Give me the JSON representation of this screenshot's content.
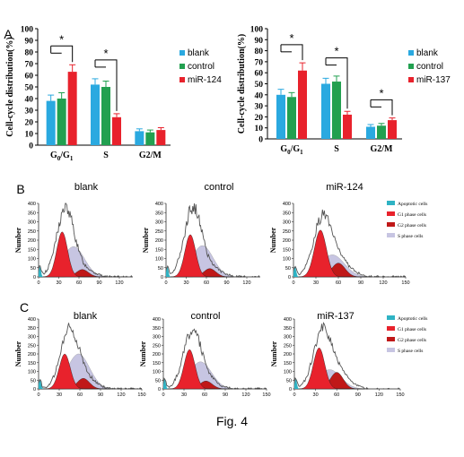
{
  "figure": {
    "caption": "Fig. 4",
    "panel_labels": {
      "A": "A",
      "B": "B",
      "C": "C"
    }
  },
  "colors": {
    "blank": "#2aa9e0",
    "control": "#22a050",
    "mir": "#e8222c",
    "apoptotic": "#2fb3c4",
    "g1": "#e8222c",
    "g2": "#c01818",
    "sphase": "#c7c5e2",
    "outline": "#555555"
  },
  "chart_data": [
    {
      "type": "bar",
      "panel": "A-left",
      "ylabel": "Cell-cycle distribution(%)",
      "ylim": [
        0,
        100
      ],
      "yticks": [
        "0",
        "10",
        "20",
        "30",
        "40",
        "50",
        "60",
        "70",
        "80",
        "90",
        "100"
      ],
      "categories": [
        "G0/G1",
        "S",
        "G2/M"
      ],
      "series": [
        {
          "name": "blank",
          "values": [
            38,
            52,
            12
          ],
          "errors": [
            5,
            5,
            2
          ]
        },
        {
          "name": "control",
          "values": [
            40,
            50,
            11
          ],
          "errors": [
            5,
            5,
            2
          ]
        },
        {
          "name": "miR-124",
          "values": [
            63,
            24,
            13
          ],
          "errors": [
            6,
            3,
            2
          ]
        }
      ],
      "significance": [
        {
          "category": "G0/G1",
          "label": "*"
        },
        {
          "category": "S",
          "label": "*"
        }
      ],
      "legend": "top-right"
    },
    {
      "type": "bar",
      "panel": "A-right",
      "ylabel": "Cell-cycle distribution(%)",
      "ylim": [
        0,
        100
      ],
      "yticks": [
        "0",
        "10",
        "20",
        "30",
        "40",
        "50",
        "60",
        "70",
        "80",
        "90",
        "100"
      ],
      "categories": [
        "G0/G1",
        "S",
        "G2/M"
      ],
      "series": [
        {
          "name": "blank",
          "values": [
            40,
            50,
            11
          ],
          "errors": [
            5,
            5,
            2
          ]
        },
        {
          "name": "control",
          "values": [
            38,
            52,
            12
          ],
          "errors": [
            4,
            5,
            2
          ]
        },
        {
          "name": "miR-137",
          "values": [
            62,
            22,
            17
          ],
          "errors": [
            7,
            3,
            2
          ]
        }
      ],
      "significance": [
        {
          "category": "G0/G1",
          "label": "*"
        },
        {
          "category": "S",
          "label": "*"
        },
        {
          "category": "G2/M",
          "label": "*"
        }
      ],
      "legend": "top-right"
    },
    {
      "type": "area",
      "panel": "B",
      "title": "blank",
      "ylabel": "Number",
      "ylim": [
        0,
        400
      ],
      "yticks": [
        "0",
        "50",
        "100",
        "150",
        "200",
        "250",
        "300",
        "350",
        "400"
      ],
      "xticks": [
        "0",
        "30",
        "60",
        "90",
        "120"
      ],
      "xlim": [
        0,
        140
      ],
      "g1_peak": [
        35,
        245
      ],
      "g2_peak": [
        65,
        40
      ],
      "s_peak": [
        52,
        165
      ],
      "hist_peak": [
        40,
        370
      ]
    },
    {
      "type": "area",
      "panel": "B",
      "title": "control",
      "ylabel": "Number",
      "ylim": [
        0,
        400
      ],
      "yticks": [
        "0",
        "50",
        "100",
        "150",
        "200",
        "250",
        "300",
        "350",
        "400"
      ],
      "xticks": [
        "0",
        "30",
        "60",
        "90",
        "120"
      ],
      "xlim": [
        0,
        140
      ],
      "g1_peak": [
        36,
        230
      ],
      "g2_peak": [
        65,
        45
      ],
      "s_peak": [
        54,
        170
      ],
      "hist_peak": [
        40,
        380
      ]
    },
    {
      "type": "area",
      "panel": "B",
      "title": "miR-124",
      "ylabel": "Number",
      "ylim": [
        0,
        400
      ],
      "yticks": [
        "0",
        "50",
        "100",
        "150",
        "200",
        "250",
        "300",
        "350",
        "400"
      ],
      "xticks": [
        "0",
        "30",
        "60",
        "90",
        "120",
        "150"
      ],
      "xlim": [
        0,
        150
      ],
      "g1_peak": [
        36,
        255
      ],
      "g2_peak": [
        60,
        75
      ],
      "s_peak": [
        52,
        120
      ],
      "hist_peak": [
        40,
        325
      ]
    },
    {
      "type": "area",
      "panel": "C",
      "title": "blank",
      "ylabel": "Number",
      "ylim": [
        0,
        400
      ],
      "yticks": [
        "0",
        "50",
        "100",
        "150",
        "200",
        "250",
        "300",
        "350",
        "400"
      ],
      "xticks": [
        "0",
        "30",
        "60",
        "90",
        "120",
        "150"
      ],
      "xlim": [
        0,
        150
      ],
      "g1_peak": [
        38,
        200
      ],
      "g2_peak": [
        65,
        60
      ],
      "s_peak": [
        58,
        200
      ],
      "hist_peak": [
        45,
        335
      ]
    },
    {
      "type": "area",
      "panel": "C",
      "title": "control",
      "ylabel": "Number",
      "ylim": [
        0,
        400
      ],
      "yticks": [
        "0",
        "50",
        "100",
        "150",
        "200",
        "250",
        "300",
        "350",
        "400"
      ],
      "xticks": [
        "0",
        "30",
        "60",
        "90",
        "120",
        "150"
      ],
      "xlim": [
        0,
        150
      ],
      "g1_peak": [
        38,
        225
      ],
      "g2_peak": [
        62,
        45
      ],
      "s_peak": [
        54,
        155
      ],
      "hist_peak": [
        42,
        330
      ]
    },
    {
      "type": "area",
      "panel": "C",
      "title": "miR-137",
      "ylabel": "Number",
      "ylim": [
        0,
        400
      ],
      "yticks": [
        "0",
        "50",
        "100",
        "150",
        "200",
        "250",
        "300",
        "350",
        "400"
      ],
      "xticks": [
        "0",
        "30",
        "60",
        "90",
        "120",
        "150"
      ],
      "xlim": [
        0,
        150
      ],
      "g1_peak": [
        35,
        235
      ],
      "g2_peak": [
        60,
        95
      ],
      "s_peak": [
        50,
        110
      ],
      "hist_peak": [
        40,
        325
      ]
    }
  ],
  "flow_legend": [
    "Apoptotic cells",
    "G1 phase cells",
    "G2 phase cells",
    "S phase cells"
  ]
}
